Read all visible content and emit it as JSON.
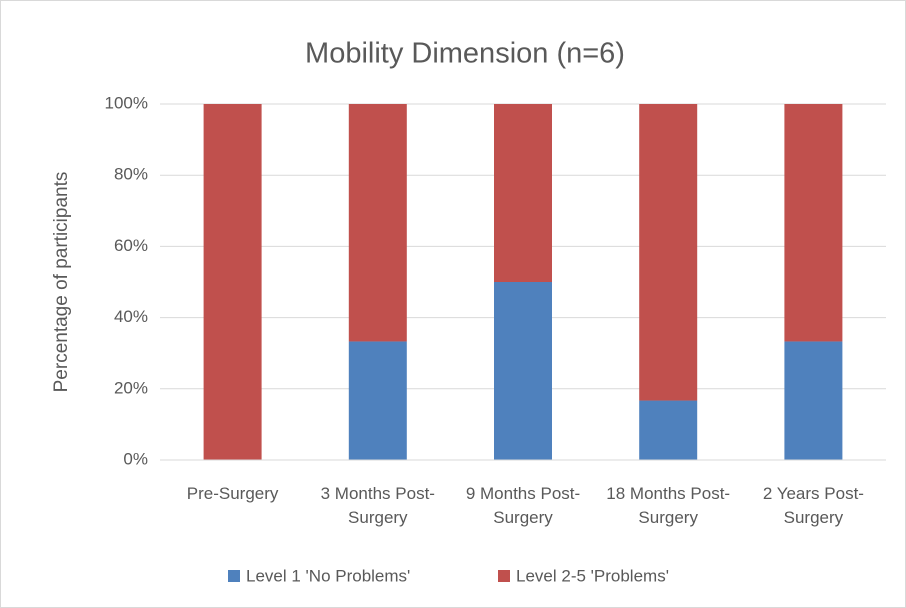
{
  "chart_data": {
    "type": "stacked_bar",
    "title": "Mobility Dimension (n=6)",
    "y_label": "Percentage of participants",
    "categories": [
      "Pre-Surgery",
      "3 Months Post-Surgery",
      "9 Months Post-Surgery",
      "18 Months Post-Surgery",
      "2 Years Post-Surgery"
    ],
    "series": [
      {
        "name": "Level 1 'No Problems'",
        "color": "#4f81bd",
        "values": [
          0,
          33.3,
          50,
          16.7,
          33.3
        ]
      },
      {
        "name": "Level 2-5 'Problems'",
        "color": "#c0504d",
        "values": [
          100,
          66.7,
          50,
          83.3,
          66.7
        ]
      }
    ],
    "ylim": [
      0,
      100
    ],
    "yticks": [
      {
        "value": 0,
        "label": "0%"
      },
      {
        "value": 20,
        "label": "20%"
      },
      {
        "value": 40,
        "label": "40%"
      },
      {
        "value": 60,
        "label": "60%"
      },
      {
        "value": 80,
        "label": "80%"
      },
      {
        "value": 100,
        "label": "100%"
      }
    ],
    "grid": true,
    "legend": "bottom"
  }
}
